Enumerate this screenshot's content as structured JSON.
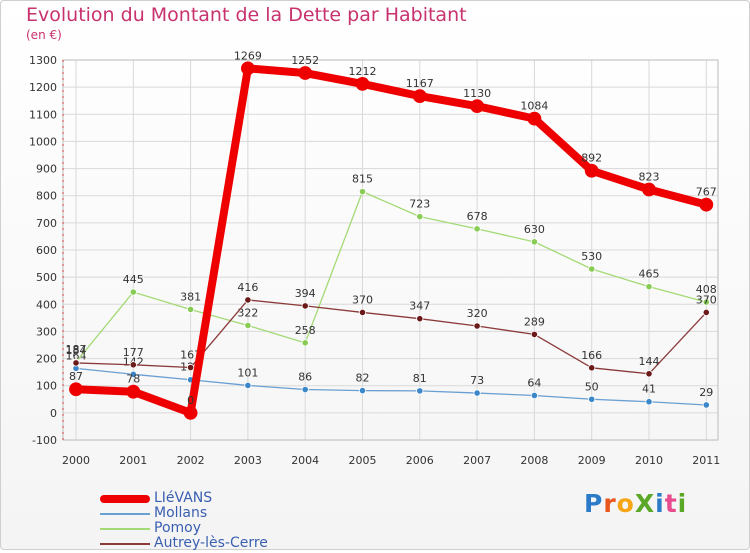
{
  "title": "Evolution du Montant de la Dette par Habitant",
  "subtitle": "(en €)",
  "logo": {
    "text": "ProXiti",
    "colors": [
      "#2b7bc8",
      "#e8561c",
      "#f6a614",
      "#5ba829",
      "#2b7bc8",
      "#e84c8e",
      "#5ba829"
    ]
  },
  "chart_data": {
    "type": "line",
    "title": "Evolution du Montant de la Dette par Habitant",
    "ylabel": "(en €)",
    "xlabel": "",
    "ylim": [
      -100,
      1300
    ],
    "yticks": [
      "-100",
      "0",
      "100",
      "200",
      "300",
      "400",
      "500",
      "600",
      "700",
      "800",
      "900",
      "1000",
      "1100",
      "1200",
      "1300"
    ],
    "categories": [
      "2000",
      "2001",
      "2002",
      "2003",
      "2004",
      "2005",
      "2006",
      "2007",
      "2008",
      "2009",
      "2010",
      "2011"
    ],
    "grid": true,
    "legend_position": "bottom-left",
    "series": [
      {
        "name": "Mollans",
        "color": "#6a9fd2",
        "marker": "#3b87c9",
        "width": 1.3,
        "dot": 3.2,
        "values": [
          164,
          142,
          122,
          101,
          86,
          82,
          81,
          73,
          64,
          50,
          41,
          29
        ],
        "labels": [
          "164",
          "142",
          "122",
          "101",
          "86",
          "82",
          "81",
          "73",
          "64",
          "50",
          "41",
          "29"
        ]
      },
      {
        "name": "Pomoy",
        "color": "#a3da75",
        "marker": "#88cc55",
        "width": 1.3,
        "dot": 3.2,
        "values": [
          187,
          445,
          381,
          322,
          258,
          815,
          723,
          678,
          630,
          530,
          465,
          408
        ],
        "labels": [
          "187",
          "445",
          "381",
          "322",
          "258",
          "815",
          "723",
          "678",
          "630",
          "530",
          "465",
          "408"
        ]
      },
      {
        "name": "Autrey-lès-Cerre",
        "color": "#8b3a3a",
        "marker": "#6b1a1a",
        "width": 1.3,
        "dot": 3.2,
        "values": [
          184,
          177,
          167,
          416,
          394,
          370,
          347,
          320,
          289,
          166,
          144,
          370
        ],
        "labels": [
          "184",
          "177",
          "167",
          "416",
          "394",
          "370",
          "347",
          "320",
          "289",
          "166",
          "144",
          "370"
        ]
      },
      {
        "name": "LIéVANS",
        "color": "#ee0000",
        "marker": "#ee0000",
        "width": 8,
        "dot": 6.5,
        "values": [
          87,
          78,
          0,
          1269,
          1252,
          1212,
          1167,
          1130,
          1084,
          892,
          823,
          767
        ],
        "labels": [
          "87",
          "78",
          "0",
          "1269",
          "1252",
          "1212",
          "1167",
          "1130",
          "1084",
          "892",
          "823",
          "767"
        ]
      }
    ]
  },
  "legend": [
    {
      "label": "LIéVANS",
      "color": "#ee0000",
      "thickness": 8
    },
    {
      "label": "Mollans",
      "color": "#6a9fd2",
      "thickness": 2
    },
    {
      "label": "Pomoy",
      "color": "#a3da75",
      "thickness": 2
    },
    {
      "label": "Autrey-lès-Cerre",
      "color": "#8b3a3a",
      "thickness": 2
    }
  ]
}
